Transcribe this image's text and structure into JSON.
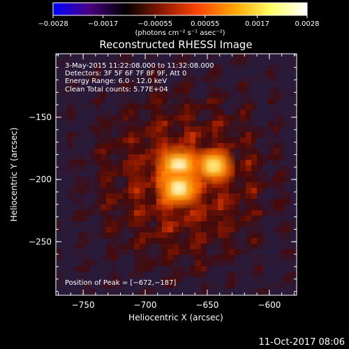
{
  "chart_data": {
    "type": "heatmap",
    "title": "Reconstructed RHESSI Image",
    "xlabel": "Heliocentric X (arcsec)",
    "ylabel": "Heliocentric Y (arcsec)",
    "xlim": [
      -772,
      -578
    ],
    "ylim": [
      -293,
      -99
    ],
    "x_ticks": [
      -750,
      -700,
      -650,
      -600
    ],
    "y_ticks": [
      -250,
      -200,
      -150
    ],
    "x_tick_labels": [
      "−750",
      "−700",
      "−650",
      "−600"
    ],
    "y_tick_labels": [
      "−250",
      "−200",
      "−150"
    ],
    "colorbar": {
      "min": -0.0028,
      "max": 0.0028,
      "ticks": [
        -0.0028,
        -0.0017,
        -0.00055,
        0.00055,
        0.0017,
        0.0028
      ],
      "tick_labels": [
        "−0.0028",
        "−0.0017",
        "−0.00055",
        "0.00055",
        "0.0017",
        "0.0028"
      ],
      "unit_label": "(photons cm⁻² s⁻¹ asec⁻²)",
      "colors": [
        "#0000ff",
        "#4b0082",
        "#000000",
        "#8b1a00",
        "#ff4500",
        "#ffa500",
        "#ffff66",
        "#ffffff"
      ]
    },
    "sources": [
      {
        "x": -673,
        "y": -189,
        "intensity": 0.0028
      },
      {
        "x": -673,
        "y": -207,
        "intensity": 0.0027
      },
      {
        "x": -645,
        "y": -189,
        "intensity": 0.0021
      }
    ],
    "peak_position": [
      -672,
      -187
    ],
    "info_lines": [
      "3-May-2015 11:22:08.000 to 11:32:08.000",
      "Detectors: 3F 5F 6F 7F 8F 9F, Att 0",
      "Energy Range: 6.0 - 12.0 keV",
      "Clean     Total counts: 5.77E+04"
    ],
    "peak_label": "Position of Peak = [−672,−187]"
  },
  "footer_date": "11-Oct-2017 08:06"
}
